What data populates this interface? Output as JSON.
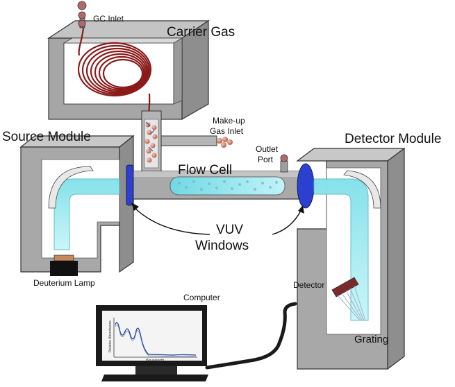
{
  "labels": {
    "gc_inlet": "GC Inlet",
    "carrier_gas": "Carrier Gas",
    "makeup_line1": "Make-up",
    "makeup_line2": "Gas Inlet",
    "source_module": "Source Module",
    "detector_module": "Detector Module",
    "outlet_line1": "Outlet",
    "outlet_line2": "Port",
    "flow_cell": "Flow Cell",
    "vuv_line1": "VUV",
    "vuv_line2": "Windows",
    "deuterium_lamp": "Deuterium Lamp",
    "computer": "Computer",
    "detector": "Detector",
    "grating": "Grating"
  },
  "screen_plot": {
    "ylabel": "Relative Absorbance",
    "xlabel": "Wavelength"
  },
  "colors": {
    "housing": "#a9a9a9",
    "housing_dark": "#8c8c8c",
    "housing_light": "#c6c6c6",
    "coil": "#8b1a1a",
    "beam": "#8fe6ee",
    "window": "#2b3fd0",
    "monitor": "#1a1a1a",
    "grating": "#7a2a2a"
  }
}
